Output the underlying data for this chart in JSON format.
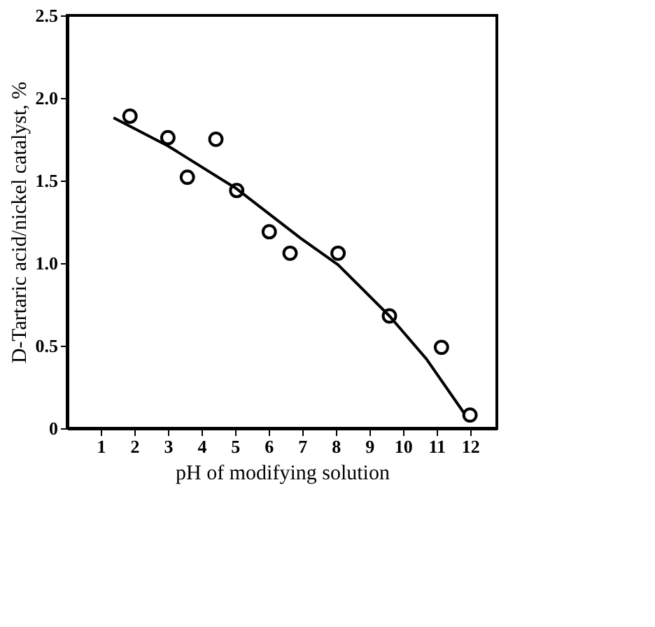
{
  "chart_data": {
    "type": "scatter",
    "xlabel": "pH of modifying solution",
    "ylabel": "D-Tartaric acid/nickel catalyst, %",
    "xlim": [
      0,
      12.8
    ],
    "xticks": [
      1,
      2,
      3,
      4,
      5,
      6,
      7,
      8,
      9,
      10,
      11,
      12
    ],
    "ylim": [
      0,
      2.5
    ],
    "yticks": [
      0,
      0.5,
      {
        "value": 1,
        "label": "1.0"
      },
      1.5,
      {
        "value": 2,
        "label": "2.0"
      },
      {
        "value": 2.5,
        "label": "2.5"
      }
    ],
    "grid": false,
    "series": [
      {
        "marker": "circle",
        "color": "#000000",
        "x": [
          1.87,
          3.0,
          3.58,
          4.43,
          5.05,
          6.02,
          6.64,
          8.07,
          9.6,
          11.15,
          12.0
        ],
        "values": [
          1.89,
          1.76,
          1.52,
          1.75,
          1.44,
          1.19,
          1.06,
          1.06,
          0.68,
          0.49,
          0.08
        ]
      },
      {
        "type": "line",
        "marker": "none",
        "color": "#000000",
        "x": [
          1.38,
          3.0,
          5.05,
          6.96,
          8.07,
          9.6,
          10.7,
          11.83
        ],
        "values": [
          1.88,
          1.71,
          1.45,
          1.15,
          0.99,
          0.68,
          0.42,
          0.09
        ]
      }
    ]
  }
}
